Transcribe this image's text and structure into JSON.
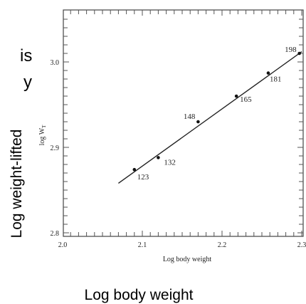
{
  "outer_labels": {
    "side_fragment_1": "is",
    "side_fragment_2": "y",
    "ylabel": "Log weight-lifted",
    "xlabel": "Log body weight"
  },
  "chart_data": {
    "type": "line",
    "xlabel": "Log body weight",
    "ylabel": "log W",
    "ylabel_subscript": "T",
    "xlim": [
      2.0,
      2.3
    ],
    "ylim": [
      2.8,
      3.05
    ],
    "x_ticks": [
      "2.0",
      "2.1",
      "2.2",
      "2.3"
    ],
    "y_ticks": [
      "2.8",
      "2.9",
      "3.0"
    ],
    "grid": false,
    "points": [
      {
        "label": "123",
        "x": 2.09,
        "y": 2.874
      },
      {
        "label": "132",
        "x": 2.12,
        "y": 2.888
      },
      {
        "label": "148",
        "x": 2.17,
        "y": 2.93
      },
      {
        "label": "165",
        "x": 2.218,
        "y": 2.96
      },
      {
        "label": "181",
        "x": 2.258,
        "y": 2.987
      },
      {
        "label": "198",
        "x": 2.297,
        "y": 3.01
      }
    ],
    "fit_line": {
      "x": [
        2.07,
        2.3
      ],
      "y": [
        2.858,
        3.012
      ]
    }
  }
}
